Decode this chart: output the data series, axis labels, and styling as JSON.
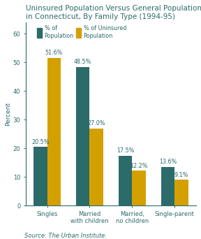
{
  "title": "Uninsured Population Versus General Population\nin Connecticut, By Family Type (1994-95)",
  "categories": [
    "Singles",
    "Married\nwith children",
    "Married,\nno children",
    "Single-parent"
  ],
  "pop_values": [
    20.5,
    48.5,
    17.5,
    13.6
  ],
  "uninsured_values": [
    51.6,
    27.0,
    12.2,
    9.1
  ],
  "pop_labels": [
    "20.5%",
    "48.5%",
    "17.5%",
    "13.6%"
  ],
  "uninsured_labels": [
    "51.6%",
    "27.0%",
    "12.2%",
    "9.1%"
  ],
  "pop_color": "#2b6b6a",
  "uninsured_color": "#d4a000",
  "legend1_label": "% of\nPopulation",
  "legend2_label": "% of Uninsured\nPopulation",
  "ylabel": "Percent",
  "ylim": [
    0,
    64
  ],
  "yticks": [
    0,
    10,
    20,
    30,
    40,
    50,
    60
  ],
  "source": "Source: The Urban Institute.",
  "bar_width": 0.32,
  "title_color": "#2b6b6a",
  "axis_color": "#2b6b6a",
  "label_fontsize": 5.8,
  "tick_fontsize": 6.0,
  "title_fontsize": 7.5,
  "ylabel_fontsize": 6.5,
  "source_fontsize": 6.0
}
